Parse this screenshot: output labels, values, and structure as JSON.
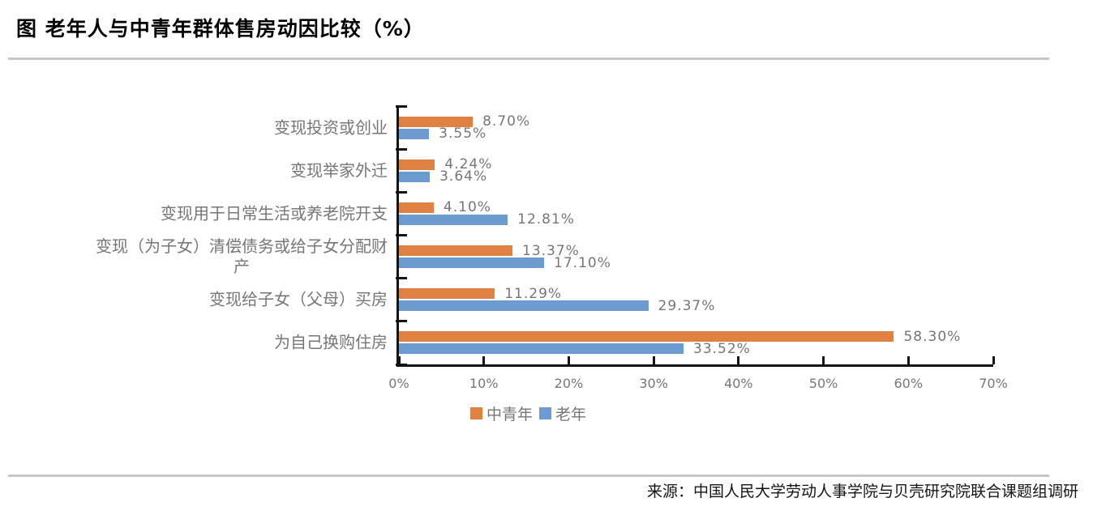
{
  "title": "图 老年人与中青年群体售房动因比较（%）",
  "source": "来源：中国人民大学劳动人事学院与贝壳研究院联合课题组调研",
  "colors": {
    "axis": "#141414",
    "text_gray": "#767676",
    "divider": "#C6C6C6",
    "young_series": "#DE8142",
    "elderly_series": "#6C9BD2"
  },
  "chart_data": {
    "type": "bar",
    "orientation": "horizontal",
    "title": "图 老年人与中青年群体售房动因比较（%）",
    "categories_order": "top-to-bottom",
    "categories": [
      "变现投资或创业",
      "变现举家外迁",
      "变现用于日常生活或养老院开支",
      "变现（为子女）清偿债务或给子女分配财\n产",
      "变现给子女（父母）买房",
      "为自己换购住房"
    ],
    "series": [
      {
        "name": "中青年",
        "color": "#DE8142",
        "values": [
          8.7,
          4.24,
          4.1,
          13.37,
          11.29,
          58.3
        ]
      },
      {
        "name": "老年",
        "color": "#6C9BD2",
        "values": [
          3.55,
          3.64,
          12.81,
          17.1,
          29.37,
          33.52
        ]
      }
    ],
    "value_label_format": "0.00%",
    "xlabel": "",
    "ylabel": "",
    "xlim": [
      0,
      70
    ],
    "x_tick_labels": [
      "0%",
      "10%",
      "20%",
      "30%",
      "40%",
      "50%",
      "60%",
      "70%"
    ],
    "grid": false,
    "legend_position": "bottom"
  }
}
